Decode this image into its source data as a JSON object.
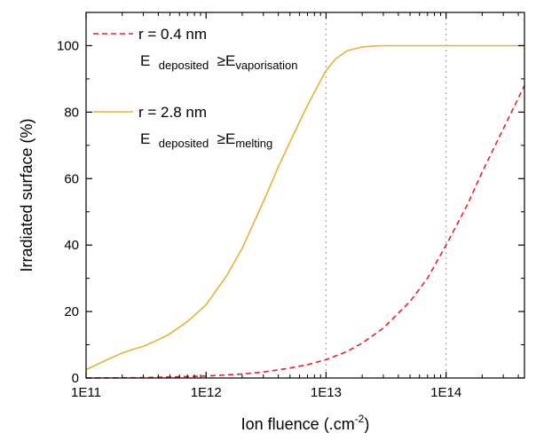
{
  "chart_data": {
    "type": "line",
    "xlabel": "Ion fluence (.cm",
    "xlabel_superscript": "-2",
    "xlabel_suffix": ")",
    "ylabel": "Irradiated surface (%)",
    "x_scale": "log",
    "xlim": [
      100000000000.0,
      450000000000000.0
    ],
    "ylim": [
      0,
      110
    ],
    "x_ticks": [
      {
        "value": 100000000000.0,
        "label": "1E11"
      },
      {
        "value": 1000000000000.0,
        "label": "1E12"
      },
      {
        "value": 10000000000000.0,
        "label": "1E13"
      },
      {
        "value": 100000000000000.0,
        "label": "1E14"
      }
    ],
    "y_ticks": [
      {
        "value": 0,
        "label": "0"
      },
      {
        "value": 20,
        "label": "20"
      },
      {
        "value": 40,
        "label": "40"
      },
      {
        "value": 60,
        "label": "60"
      },
      {
        "value": 80,
        "label": "80"
      },
      {
        "value": 100,
        "label": "100"
      }
    ],
    "reference_lines_x": [
      10000000000000.0,
      100000000000000.0
    ],
    "legend_position": "top-left",
    "series": [
      {
        "name": "r = 0.4 nm",
        "annotation": {
          "main": "E",
          "sub": "deposited",
          "rel": "≥",
          "main2": "E",
          "sub2": "vaporisation"
        },
        "color": "#e8202a",
        "style": "dashed",
        "x": [
          100000000000.0,
          300000000000.0,
          1000000000000.0,
          2000000000000.0,
          3000000000000.0,
          5000000000000.0,
          7000000000000.0,
          10000000000000.0,
          15000000000000.0,
          20000000000000.0,
          30000000000000.0,
          50000000000000.0,
          70000000000000.0,
          100000000000000.0,
          150000000000000.0,
          200000000000000.0,
          300000000000000.0,
          450000000000000.0
        ],
        "y": [
          0,
          0.1,
          0.6,
          1.2,
          1.8,
          3,
          4,
          5.5,
          8,
          10.5,
          15,
          23,
          30,
          40,
          52,
          62,
          75,
          88
        ]
      },
      {
        "name": "r = 2.8 nm",
        "annotation": {
          "main": "E",
          "sub": "deposited",
          "rel": "≥",
          "main2": "E",
          "sub2": "melting"
        },
        "color": "#e5b33a",
        "style": "solid",
        "x": [
          100000000000.0,
          150000000000.0,
          200000000000.0,
          250000000000.0,
          300000000000.0,
          400000000000.0,
          500000000000.0,
          700000000000.0,
          1000000000000.0,
          1500000000000.0,
          2000000000000.0,
          3000000000000.0,
          4000000000000.0,
          5000000000000.0,
          6000000000000.0,
          7000000000000.0,
          8000000000000.0,
          10000000000000.0,
          12000000000000.0,
          15000000000000.0,
          20000000000000.0,
          25000000000000.0,
          30000000000000.0,
          40000000000000.0,
          60000000000000.0,
          100000000000000.0,
          200000000000000.0,
          450000000000000.0
        ],
        "y": [
          2.5,
          5.5,
          7.5,
          8.7,
          9.5,
          11.5,
          13.3,
          17,
          22,
          31,
          39,
          53,
          63.5,
          71,
          77,
          82,
          86,
          92.5,
          96,
          98.5,
          99.6,
          99.9,
          100,
          100,
          100,
          100,
          100,
          100
        ]
      }
    ]
  }
}
